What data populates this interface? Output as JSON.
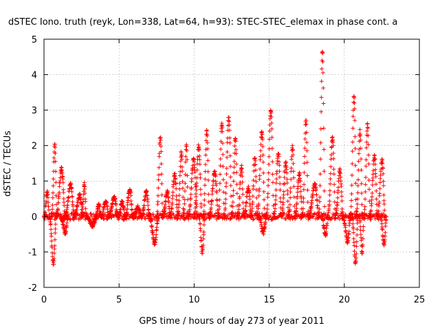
{
  "chart_data": {
    "type": "scatter",
    "title": "dSTEC Iono. truth (reyk, Lon=338, Lat=64, h=93): STEC-STEC_elemax in phase cont. a",
    "xlabel": "GPS time / hours of day 273 of year 2011",
    "ylabel": "dSTEC  / TECUs",
    "xlim": [
      0,
      25
    ],
    "ylim": [
      -2,
      5
    ],
    "xticks": [
      "0",
      "5",
      "10",
      "15",
      "20",
      "25"
    ],
    "yticks": [
      "-2",
      "-1",
      "0",
      "1",
      "2",
      "3",
      "4",
      "5"
    ],
    "grid": true,
    "marker": "+",
    "color": "#ff0000",
    "arcs": [
      {
        "t0": 0.0,
        "t1": 0.35,
        "peak": 0.7
      },
      {
        "t0": 0.35,
        "t1": 0.8,
        "peak": -1.35
      },
      {
        "t0": 0.5,
        "t1": 0.85,
        "peak": 2.0
      },
      {
        "t0": 0.8,
        "t1": 1.4,
        "peak": 1.35
      },
      {
        "t0": 1.1,
        "t1": 1.6,
        "peak": -0.45
      },
      {
        "t0": 1.4,
        "t1": 2.0,
        "peak": 0.9
      },
      {
        "t0": 2.0,
        "t1": 2.6,
        "peak": 0.6
      },
      {
        "t0": 2.5,
        "t1": 2.8,
        "peak": 0.9
      },
      {
        "t0": 2.8,
        "t1": 3.5,
        "peak": -0.25
      },
      {
        "t0": 3.4,
        "t1": 3.8,
        "peak": 0.3
      },
      {
        "t0": 3.8,
        "t1": 4.3,
        "peak": 0.45
      },
      {
        "t0": 4.3,
        "t1": 4.9,
        "peak": 0.55
      },
      {
        "t0": 4.9,
        "t1": 5.4,
        "peak": 0.4
      },
      {
        "t0": 5.4,
        "t1": 5.9,
        "peak": 0.75
      },
      {
        "t0": 5.9,
        "t1": 6.5,
        "peak": 0.25
      },
      {
        "t0": 6.5,
        "t1": 7.0,
        "peak": 0.7
      },
      {
        "t0": 7.0,
        "t1": 7.6,
        "peak": -0.75
      },
      {
        "t0": 7.5,
        "t1": 7.9,
        "peak": 2.25
      },
      {
        "t0": 7.9,
        "t1": 8.4,
        "peak": 0.7
      },
      {
        "t0": 8.4,
        "t1": 8.9,
        "peak": 1.2
      },
      {
        "t0": 8.9,
        "t1": 9.3,
        "peak": 1.8
      },
      {
        "t0": 9.3,
        "t1": 9.6,
        "peak": 2.05
      },
      {
        "t0": 9.6,
        "t1": 10.2,
        "peak": 1.6
      },
      {
        "t0": 10.0,
        "t1": 10.5,
        "peak": 2.0
      },
      {
        "t0": 10.3,
        "t1": 10.7,
        "peak": -1.0
      },
      {
        "t0": 10.6,
        "t1": 11.0,
        "peak": 2.4
      },
      {
        "t0": 11.0,
        "t1": 11.6,
        "peak": 1.25
      },
      {
        "t0": 11.6,
        "t1": 12.0,
        "peak": 2.65
      },
      {
        "t0": 12.0,
        "t1": 12.5,
        "peak": 2.8
      },
      {
        "t0": 12.5,
        "t1": 12.9,
        "peak": 2.2
      },
      {
        "t0": 12.9,
        "t1": 13.3,
        "peak": 1.4
      },
      {
        "t0": 13.3,
        "t1": 13.8,
        "peak": 0.8
      },
      {
        "t0": 13.8,
        "t1": 14.2,
        "peak": 1.7
      },
      {
        "t0": 14.2,
        "t1": 14.7,
        "peak": 2.4
      },
      {
        "t0": 14.3,
        "t1": 14.8,
        "peak": -0.45
      },
      {
        "t0": 14.8,
        "t1": 15.3,
        "peak": 3.0
      },
      {
        "t0": 15.3,
        "t1": 15.8,
        "peak": 1.8
      },
      {
        "t0": 15.8,
        "t1": 16.3,
        "peak": 1.5
      },
      {
        "t0": 16.3,
        "t1": 16.7,
        "peak": 1.95
      },
      {
        "t0": 16.7,
        "t1": 17.2,
        "peak": 1.2
      },
      {
        "t0": 17.2,
        "t1": 17.6,
        "peak": 2.7
      },
      {
        "t0": 17.6,
        "t1": 18.3,
        "peak": 0.9
      },
      {
        "t0": 18.3,
        "t1": 18.7,
        "peak": 4.65
      },
      {
        "t0": 18.5,
        "t1": 18.9,
        "peak": -0.55
      },
      {
        "t0": 18.9,
        "t1": 19.4,
        "peak": 2.2
      },
      {
        "t0": 19.4,
        "t1": 19.9,
        "peak": 1.3
      },
      {
        "t0": 19.9,
        "t1": 20.4,
        "peak": -0.7
      },
      {
        "t0": 20.4,
        "t1": 20.8,
        "peak": 3.4
      },
      {
        "t0": 20.5,
        "t1": 20.9,
        "peak": -1.3
      },
      {
        "t0": 20.8,
        "t1": 21.2,
        "peak": 2.4
      },
      {
        "t0": 21.0,
        "t1": 21.3,
        "peak": -1.0
      },
      {
        "t0": 21.3,
        "t1": 21.7,
        "peak": 2.6
      },
      {
        "t0": 21.7,
        "t1": 22.2,
        "peak": 1.7
      },
      {
        "t0": 22.2,
        "t1": 22.7,
        "peak": 1.6
      },
      {
        "t0": 22.4,
        "t1": 22.8,
        "peak": -0.8
      }
    ]
  }
}
